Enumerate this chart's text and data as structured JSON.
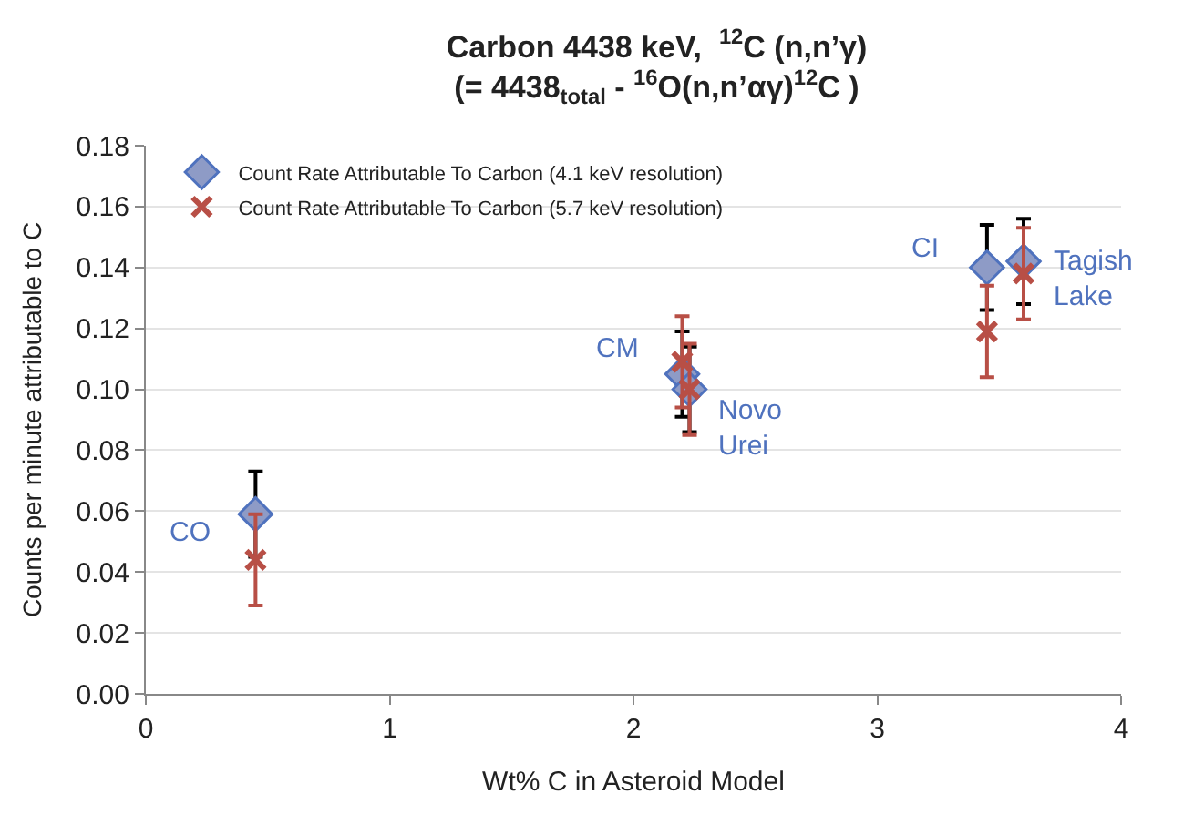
{
  "chart_data": {
    "type": "scatter",
    "title": "Carbon 4438 keV,  $^{12}$C (n,n’γ)",
    "subtitle": "(= 4438$_{total}$ - $^{16}$O(n,n’αγ)$^{12}$C )",
    "xlabel": "Wt% C in Asteroid Model",
    "ylabel": "Counts per minute attributable to C",
    "x": [
      0.45,
      2.2,
      2.23,
      3.45,
      3.6
    ],
    "series": [
      {
        "name": "Count Rate Attributable To Carbon (4.1 keV resolution)",
        "color": "#8e9bc6",
        "marker": "diamond",
        "values": [
          0.059,
          0.105,
          0.1,
          0.14,
          0.142
        ],
        "errors": [
          0.014,
          0.014,
          0.014,
          0.014,
          0.014
        ]
      },
      {
        "name": "Count Rate Attributable To Carbon (5.7 keV resolution)",
        "color": "#b84f46",
        "marker": "cross",
        "values": [
          0.044,
          0.109,
          0.1,
          0.119,
          0.138
        ],
        "errors": [
          0.015,
          0.015,
          0.015,
          0.015,
          0.015
        ]
      }
    ],
    "annotations": [
      {
        "text": "CO",
        "x": 0.45,
        "y": 0.059
      },
      {
        "text": "CM",
        "x": 2.2,
        "y": 0.105
      },
      {
        "text": "Novo Urei",
        "x": 2.23,
        "y": 0.1
      },
      {
        "text": "CI",
        "x": 3.45,
        "y": 0.14
      },
      {
        "text": "Tagish Lake",
        "x": 3.6,
        "y": 0.142
      }
    ],
    "xlim": [
      0,
      4
    ],
    "xticks": [
      0,
      1,
      2,
      3,
      4
    ],
    "ylim": [
      0,
      0.18
    ],
    "yticks": [
      {
        "value": 0,
        "label": "0.00"
      },
      {
        "value": 0.02,
        "label": "0.02"
      },
      {
        "value": 0.04,
        "label": "0.04"
      },
      {
        "value": 0.06,
        "label": "0.06"
      },
      {
        "value": 0.08,
        "label": "0.08"
      },
      {
        "value": 0.1,
        "label": "0.10"
      },
      {
        "value": 0.12,
        "label": "0.12"
      },
      {
        "value": 0.14,
        "label": "0.14"
      },
      {
        "value": 0.16,
        "label": "0.16"
      },
      {
        "value": 0.18,
        "label": "0.18"
      }
    ],
    "grid": "y",
    "legend": "top left"
  }
}
